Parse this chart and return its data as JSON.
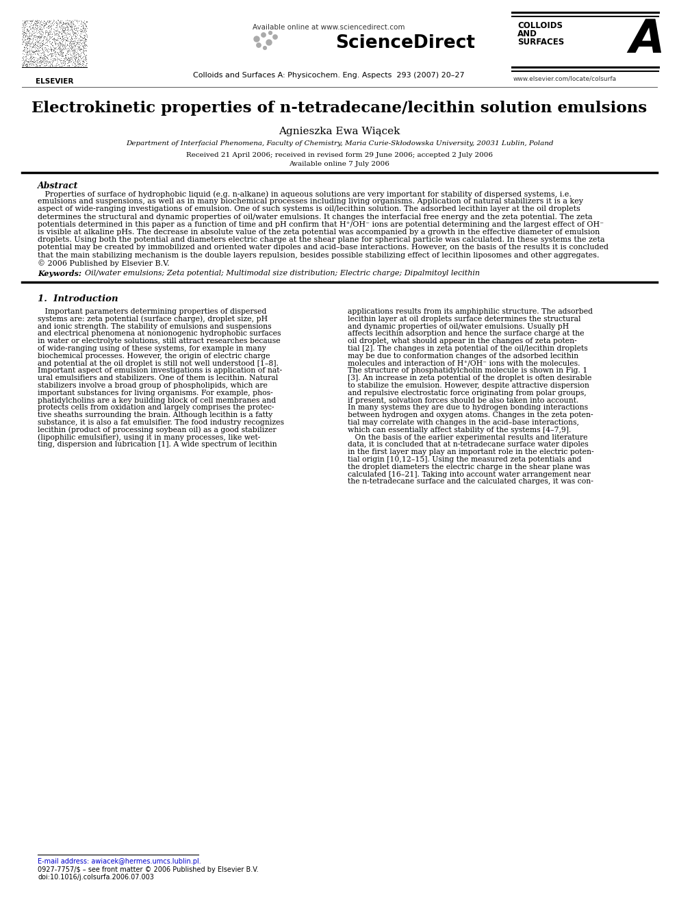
{
  "page_bg": "#ffffff",
  "header_avail": "Available online at www.sciencedirect.com",
  "header_sd": "ScienceDirect",
  "header_journal": "Colloids and Surfaces A: Physicochem. Eng. Aspects  293 (2007) 20–27",
  "colloids1": "COLLOIDS",
  "colloids2": "AND",
  "colloids3": "SURFACES",
  "colloids_a": "A",
  "elsevier_text": "ELSEVIER",
  "website": "www.elsevier.com/locate/colsurfa",
  "title_pre": "Electrokinetic properties of ",
  "title_n": "n",
  "title_post": "-tetradecane/lecithin solution emulsions",
  "author": "Agnieszka Ewa Wiącek",
  "affiliation": "Department of Interfacial Phenomena, Faculty of Chemistry, Maria Curie-Skłodowska University, 20031 Lublin, Poland",
  "received": "Received 21 April 2006; received in revised form 29 June 2006; accepted 2 July 2006",
  "available_online": "Available online 7 July 2006",
  "abstract_heading": "Abstract",
  "abstract_lines": [
    "   Properties of surface of hydrophobic liquid (e.g. n-alkane) in aqueous solutions are very important for stability of dispersed systems, i.e.",
    "emulsions and suspensions, as well as in many biochemical processes including living organisms. Application of natural stabilizers it is a key",
    "aspect of wide-ranging investigations of emulsion. One of such systems is oil/lecithin solution. The adsorbed lecithin layer at the oil droplets",
    "determines the structural and dynamic properties of oil/water emulsions. It changes the interfacial free energy and the zeta potential. The zeta",
    "potentials determined in this paper as a function of time and pH confirm that H⁺/OH⁻ ions are potential determining and the largest effect of OH⁻",
    "is visible at alkaline pHs. The decrease in absolute value of the zeta potential was accompanied by a growth in the effective diameter of emulsion",
    "droplets. Using both the potential and diameters electric charge at the shear plane for spherical particle was calculated. In these systems the zeta",
    "potential may be created by immobilized and oriented water dipoles and acid–base interactions. However, on the basis of the results it is concluded",
    "that the main stabilizing mechanism is the double layers repulsion, besides possible stabilizing effect of lecithin liposomes and other aggregates.",
    "© 2006 Published by Elsevier B.V."
  ],
  "keywords_label": "Keywords:",
  "keywords_text": "  Oil/water emulsions; Zeta potential; Multimodal size distribution; Electric charge; Dipalmitoyl lecithin",
  "section1_heading": "1.  Introduction",
  "left_col_lines": [
    "   Important parameters determining properties of dispersed",
    "systems are: zeta potential (surface charge), droplet size, pH",
    "and ionic strength. The stability of emulsions and suspensions",
    "and electrical phenomena at nonionogenic hydrophobic surfaces",
    "in water or electrolyte solutions, still attract researches because",
    "of wide-ranging using of these systems, for example in many",
    "biochemical processes. However, the origin of electric charge",
    "and potential at the oil droplet is still not well understood [1–8].",
    "Important aspect of emulsion investigations is application of nat-",
    "ural emulsifiers and stabilizers. One of them is lecithin. Natural",
    "stabilizers involve a broad group of phospholipids, which are",
    "important substances for living organisms. For example, phos-",
    "phatidylcholins are a key building block of cell membranes and",
    "protects cells from oxidation and largely comprises the protec-",
    "tive sheaths surrounding the brain. Although lecithin is a fatty",
    "substance, it is also a fat emulsifier. The food industry recognizes",
    "lecithin (product of processing soybean oil) as a good stabilizer",
    "(lipophilic emulsifier), using it in many processes, like wet-",
    "ting, dispersion and lubrication [1]. A wide spectrum of lecithin"
  ],
  "right_col_lines": [
    "applications results from its amphiphilic structure. The adsorbed",
    "lecithin layer at oil droplets surface determines the structural",
    "and dynamic properties of oil/water emulsions. Usually pH",
    "affects lecithin adsorption and hence the surface charge at the",
    "oil droplet, what should appear in the changes of zeta poten-",
    "tial [2]. The changes in zeta potential of the oil/lecithin droplets",
    "may be due to conformation changes of the adsorbed lecithin",
    "molecules and interaction of H⁺/OH⁻ ions with the molecules.",
    "The structure of phosphatidylcholin molecule is shown in Fig. 1",
    "[3]. An increase in zeta potential of the droplet is often desirable",
    "to stabilize the emulsion. However, despite attractive dispersion",
    "and repulsive electrostatic force originating from polar groups,",
    "if present, solvation forces should be also taken into account.",
    "In many systems they are due to hydrogen bonding interactions",
    "between hydrogen and oxygen atoms. Changes in the zeta poten-",
    "tial may correlate with changes in the acid–base interactions,",
    "which can essentially affect stability of the systems [4–7,9].",
    "   On the basis of the earlier experimental results and literature",
    "data, it is concluded that at n-tetradecane surface water dipoles",
    "in the first layer may play an important role in the electric poten-",
    "tial origin [10,12–15]. Using the measured zeta potentials and",
    "the droplet diameters the electric charge in the shear plane was",
    "calculated [16–21]. Taking into account water arrangement near",
    "the n-tetradecane surface and the calculated charges, it was con-"
  ],
  "footnote_line": "E-mail address: awiacek@hermes.umcs.lublin.pl.",
  "footnote_issn": "0927-7757/$ – see front matter © 2006 Published by Elsevier B.V.",
  "footnote_doi": "doi:10.1016/j.colsurfa.2006.07.003",
  "fig_w": 9.92,
  "fig_h": 13.23,
  "dpi": 100
}
